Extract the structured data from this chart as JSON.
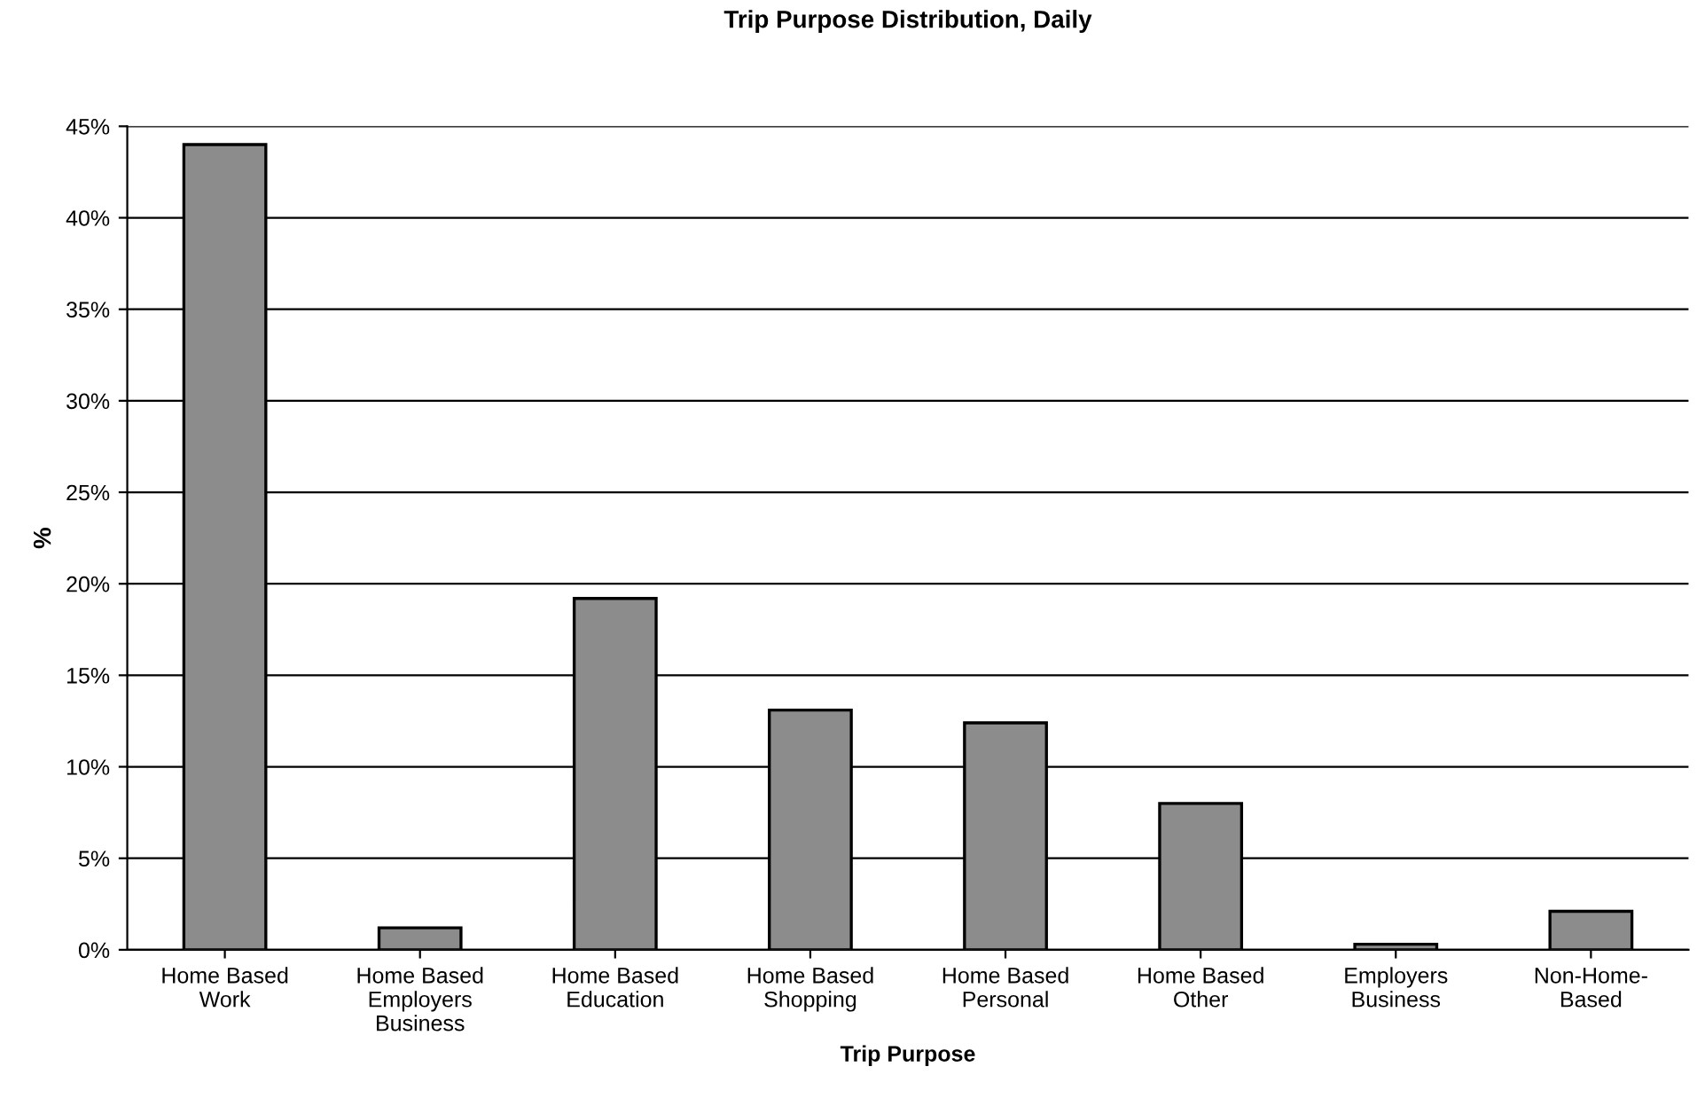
{
  "chart_data": {
    "type": "bar",
    "title": "Trip Purpose Distribution, Daily",
    "xlabel": "Trip Purpose",
    "ylabel": "%",
    "categories": [
      "Home Based\nWork",
      "Home Based\nEmployers\nBusiness",
      "Home Based\nEducation",
      "Home Based\nShopping",
      "Home Based\nPersonal",
      "Home Based\nOther",
      "Employers\nBusiness",
      "Non-Home-\nBased"
    ],
    "values": [
      44.0,
      1.2,
      19.2,
      13.1,
      12.4,
      8.0,
      0.3,
      2.1
    ],
    "color": "#8c8c8c",
    "ylim": [
      0,
      45
    ],
    "yticks": [
      {
        "value": 0,
        "label": "0%"
      },
      {
        "value": 5,
        "label": "5%"
      },
      {
        "value": 10,
        "label": "10%"
      },
      {
        "value": 15,
        "label": "15%"
      },
      {
        "value": 20,
        "label": "20%"
      },
      {
        "value": 25,
        "label": "25%"
      },
      {
        "value": 30,
        "label": "30%"
      },
      {
        "value": 35,
        "label": "35%"
      },
      {
        "value": 40,
        "label": "40%"
      },
      {
        "value": 45,
        "label": "45%"
      }
    ],
    "grid": "y",
    "legend": false
  }
}
